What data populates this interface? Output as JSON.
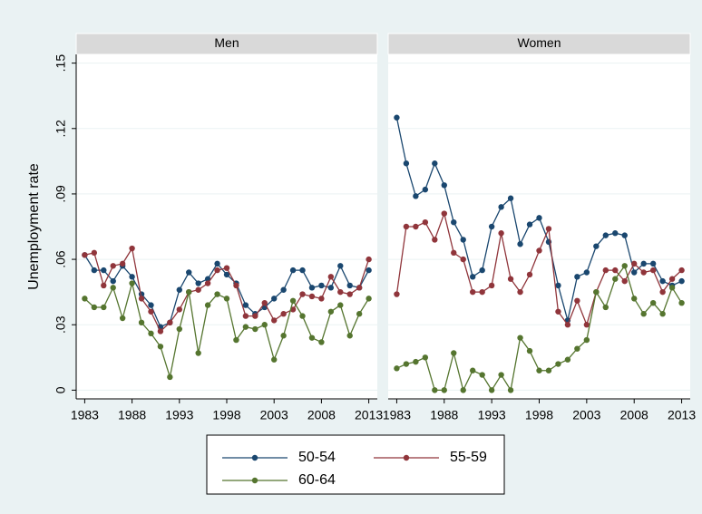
{
  "chart_data": [
    {
      "type": "line",
      "title": "Men",
      "y_label": "Unemployment rate",
      "x": [
        1983,
        1984,
        1985,
        1986,
        1987,
        1988,
        1989,
        1990,
        1991,
        1992,
        1993,
        1994,
        1995,
        1996,
        1997,
        1998,
        1999,
        2000,
        2001,
        2002,
        2003,
        2004,
        2005,
        2006,
        2007,
        2008,
        2009,
        2010,
        2011,
        2012,
        2013
      ],
      "xlim": [
        1982.1,
        2013.9
      ],
      "xticks": [
        1983,
        1988,
        1993,
        1998,
        2003,
        2008,
        2013
      ],
      "ylim": [
        -0.004,
        0.154
      ],
      "yticks": [
        0,
        {
          "value": 0.03,
          "label": ".03"
        },
        {
          "value": 0.06,
          "label": ".06"
        },
        {
          "value": 0.09,
          "label": ".09"
        },
        {
          "value": 0.12,
          "label": ".12"
        },
        {
          "value": 0.15,
          "label": ".15"
        }
      ],
      "grid": true,
      "series": [
        {
          "name": "50-54",
          "color": "#1a476f",
          "values": [
            0.062,
            0.055,
            0.055,
            0.05,
            0.057,
            0.052,
            0.044,
            0.039,
            0.029,
            0.031,
            0.046,
            0.054,
            0.049,
            0.051,
            0.058,
            0.053,
            0.049,
            0.039,
            0.035,
            0.038,
            0.042,
            0.046,
            0.055,
            0.055,
            0.047,
            0.048,
            0.047,
            0.057,
            0.048,
            0.047,
            0.055
          ]
        },
        {
          "name": "55-59",
          "color": "#90353b",
          "values": [
            0.062,
            0.063,
            0.048,
            0.057,
            0.058,
            0.065,
            0.042,
            0.036,
            0.027,
            0.031,
            0.037,
            0.045,
            0.046,
            0.049,
            0.055,
            0.056,
            0.048,
            0.034,
            0.034,
            0.04,
            0.032,
            0.035,
            0.037,
            0.044,
            0.043,
            0.042,
            0.052,
            0.045,
            0.044,
            0.047,
            0.06
          ]
        },
        {
          "name": "60-64",
          "color": "#55752f",
          "values": [
            0.042,
            0.038,
            0.038,
            0.047,
            0.033,
            0.049,
            0.031,
            0.026,
            0.02,
            0.006,
            0.028,
            0.045,
            0.017,
            0.039,
            0.044,
            0.042,
            0.023,
            0.029,
            0.028,
            0.03,
            0.014,
            0.025,
            0.041,
            0.034,
            0.024,
            0.022,
            0.036,
            0.039,
            0.025,
            0.035,
            0.042
          ]
        }
      ]
    },
    {
      "type": "line",
      "title": "Women",
      "x": [
        1983,
        1984,
        1985,
        1986,
        1987,
        1988,
        1989,
        1990,
        1991,
        1992,
        1993,
        1994,
        1995,
        1996,
        1997,
        1998,
        1999,
        2000,
        2001,
        2002,
        2003,
        2004,
        2005,
        2006,
        2007,
        2008,
        2009,
        2010,
        2011,
        2012,
        2013
      ],
      "xlim": [
        1982.1,
        2013.9
      ],
      "xticks": [
        1983,
        1988,
        1993,
        1998,
        2003,
        2008,
        2013
      ],
      "ylim": [
        -0.004,
        0.154
      ],
      "yticks": [
        0,
        0.03,
        0.06,
        0.09,
        0.12,
        0.15
      ],
      "grid": true,
      "series": [
        {
          "name": "50-54",
          "color": "#1a476f",
          "values": [
            0.125,
            0.104,
            0.089,
            0.092,
            0.104,
            0.094,
            0.077,
            0.069,
            0.052,
            0.055,
            0.075,
            0.084,
            0.088,
            0.067,
            0.076,
            0.079,
            0.068,
            0.048,
            0.032,
            0.052,
            0.054,
            0.066,
            0.071,
            0.072,
            0.071,
            0.054,
            0.058,
            0.058,
            0.05,
            0.048,
            0.05
          ]
        },
        {
          "name": "55-59",
          "color": "#90353b",
          "values": [
            0.044,
            0.075,
            0.075,
            0.077,
            0.069,
            0.081,
            0.063,
            0.06,
            0.045,
            0.045,
            0.048,
            0.072,
            0.051,
            0.045,
            0.053,
            0.064,
            0.074,
            0.036,
            0.03,
            0.041,
            0.03,
            0.045,
            0.055,
            0.055,
            0.05,
            0.058,
            0.054,
            0.055,
            0.045,
            0.051,
            0.055
          ]
        },
        {
          "name": "60-64",
          "color": "#55752f",
          "values": [
            0.01,
            0.012,
            0.013,
            0.015,
            0,
            0,
            0.017,
            0,
            0.009,
            0.007,
            0,
            0.007,
            0,
            0.024,
            0.018,
            0.009,
            0.009,
            0.012,
            0.014,
            0.019,
            0.023,
            0.045,
            0.038,
            0.051,
            0.057,
            0.042,
            0.035,
            0.04,
            0.035,
            0.047,
            0.04
          ]
        }
      ]
    }
  ]
}
